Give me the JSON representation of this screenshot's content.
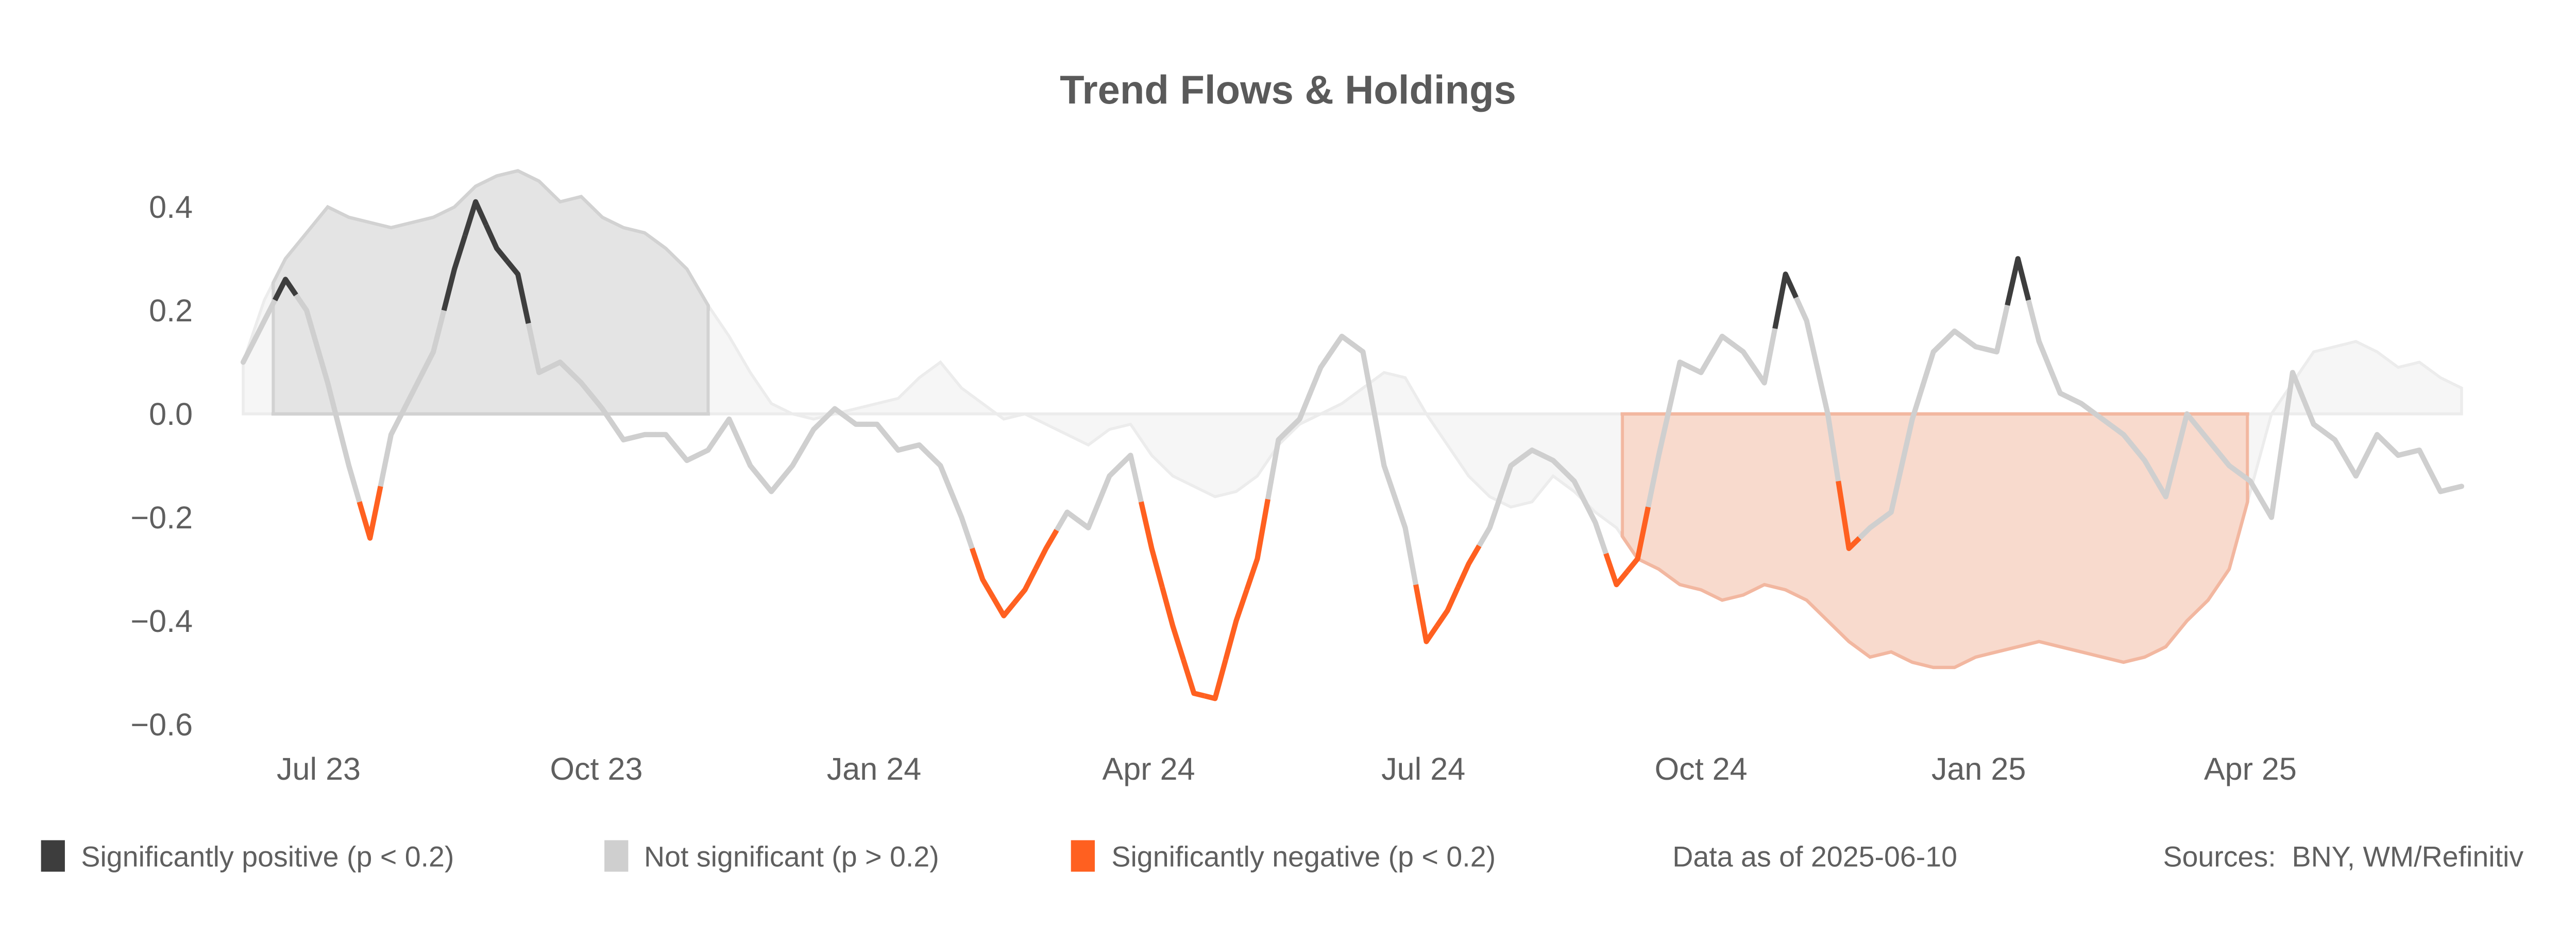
{
  "chart_data": {
    "type": "line",
    "title": "Trend Flows & Holdings",
    "xlabel": "",
    "ylabel": "",
    "ylim": [
      -0.65,
      0.5
    ],
    "grid": false,
    "y_ticks": [
      {
        "value": 0.4,
        "label": "0.4"
      },
      {
        "value": 0.2,
        "label": "0.2"
      },
      {
        "value": 0.0,
        "label": "0.0"
      },
      {
        "value": -0.2,
        "label": "−0.2"
      },
      {
        "value": -0.4,
        "label": "−0.4"
      },
      {
        "value": -0.6,
        "label": "−0.6"
      }
    ],
    "x_ticks": [
      {
        "date": "2023-07-01",
        "label": "Jul 23"
      },
      {
        "date": "2023-10-01",
        "label": "Oct 23"
      },
      {
        "date": "2024-01-01",
        "label": "Jan 24"
      },
      {
        "date": "2024-04-01",
        "label": "Apr 24"
      },
      {
        "date": "2024-07-01",
        "label": "Jul 24"
      },
      {
        "date": "2024-10-01",
        "label": "Oct 24"
      },
      {
        "date": "2025-01-01",
        "label": "Jan 25"
      },
      {
        "date": "2025-04-01",
        "label": "Apr 25"
      }
    ],
    "dates": [
      "2023-06-06",
      "2023-06-13",
      "2023-06-20",
      "2023-06-27",
      "2023-07-04",
      "2023-07-11",
      "2023-07-18",
      "2023-07-25",
      "2023-08-01",
      "2023-08-08",
      "2023-08-15",
      "2023-08-22",
      "2023-08-29",
      "2023-09-05",
      "2023-09-12",
      "2023-09-19",
      "2023-09-26",
      "2023-10-03",
      "2023-10-10",
      "2023-10-17",
      "2023-10-24",
      "2023-10-31",
      "2023-11-07",
      "2023-11-14",
      "2023-11-21",
      "2023-11-28",
      "2023-12-05",
      "2023-12-12",
      "2023-12-19",
      "2023-12-26",
      "2024-01-02",
      "2024-01-09",
      "2024-01-16",
      "2024-01-23",
      "2024-01-30",
      "2024-02-06",
      "2024-02-13",
      "2024-02-20",
      "2024-02-27",
      "2024-03-05",
      "2024-03-12",
      "2024-03-19",
      "2024-03-26",
      "2024-04-02",
      "2024-04-09",
      "2024-04-16",
      "2024-04-23",
      "2024-04-30",
      "2024-05-07",
      "2024-05-14",
      "2024-05-21",
      "2024-05-28",
      "2024-06-04",
      "2024-06-11",
      "2024-06-18",
      "2024-06-25",
      "2024-07-02",
      "2024-07-09",
      "2024-07-16",
      "2024-07-23",
      "2024-07-30",
      "2024-08-06",
      "2024-08-13",
      "2024-08-20",
      "2024-08-27",
      "2024-09-03",
      "2024-09-10",
      "2024-09-17",
      "2024-09-24",
      "2024-10-01",
      "2024-10-08",
      "2024-10-15",
      "2024-10-22",
      "2024-10-29",
      "2024-11-05",
      "2024-11-12",
      "2024-11-19",
      "2024-11-26",
      "2024-12-03",
      "2024-12-10",
      "2024-12-17",
      "2024-12-24",
      "2024-12-31",
      "2025-01-07",
      "2025-01-14",
      "2025-01-21",
      "2025-01-28",
      "2025-02-04",
      "2025-02-11",
      "2025-02-18",
      "2025-02-25",
      "2025-03-04",
      "2025-03-11",
      "2025-03-18",
      "2025-03-25",
      "2025-04-01",
      "2025-04-08",
      "2025-04-15",
      "2025-04-22",
      "2025-04-29",
      "2025-05-06",
      "2025-05-13",
      "2025-05-20",
      "2025-05-27",
      "2025-06-03",
      "2025-06-10"
    ],
    "series": [
      {
        "kind": "line",
        "values": [
          0.1,
          0.18,
          0.26,
          0.2,
          0.06,
          -0.1,
          -0.24,
          -0.04,
          0.04,
          0.12,
          0.28,
          0.41,
          0.32,
          0.27,
          0.08,
          0.1,
          0.06,
          0.01,
          -0.05,
          -0.04,
          -0.04,
          -0.09,
          -0.07,
          -0.01,
          -0.1,
          -0.15,
          -0.1,
          -0.03,
          0.01,
          -0.02,
          -0.02,
          -0.07,
          -0.06,
          -0.1,
          -0.2,
          -0.32,
          -0.39,
          -0.34,
          -0.26,
          -0.19,
          -0.22,
          -0.12,
          -0.08,
          -0.26,
          -0.41,
          -0.54,
          -0.55,
          -0.4,
          -0.28,
          -0.05,
          -0.01,
          0.09,
          0.15,
          0.12,
          -0.1,
          -0.22,
          -0.44,
          -0.38,
          -0.29,
          -0.22,
          -0.1,
          -0.07,
          -0.09,
          -0.13,
          -0.21,
          -0.33,
          -0.28,
          -0.08,
          0.1,
          0.08,
          0.15,
          0.12,
          0.06,
          0.27,
          0.18,
          0.0,
          -0.26,
          -0.22,
          -0.19,
          -0.01,
          0.12,
          0.16,
          0.13,
          0.12,
          0.3,
          0.14,
          0.04,
          0.02,
          -0.01,
          -0.04,
          -0.09,
          -0.16,
          0.0,
          -0.05,
          -0.1,
          -0.13,
          -0.2,
          0.08,
          -0.02,
          -0.05,
          -0.12,
          -0.04,
          -0.08,
          -0.07,
          -0.15,
          -0.14
        ],
        "significance": [
          "ns",
          "ns",
          "pos",
          "ns",
          "ns",
          "ns",
          "neg",
          "ns",
          "ns",
          "ns",
          "pos",
          "pos",
          "pos",
          "pos",
          "ns",
          "ns",
          "ns",
          "ns",
          "ns",
          "ns",
          "ns",
          "ns",
          "ns",
          "ns",
          "ns",
          "ns",
          "ns",
          "ns",
          "ns",
          "ns",
          "ns",
          "ns",
          "ns",
          "ns",
          "ns",
          "neg",
          "neg",
          "neg",
          "neg",
          "ns",
          "ns",
          "ns",
          "ns",
          "neg",
          "neg",
          "neg",
          "neg",
          "neg",
          "neg",
          "ns",
          "ns",
          "ns",
          "ns",
          "ns",
          "ns",
          "ns",
          "neg",
          "neg",
          "neg",
          "ns",
          "ns",
          "ns",
          "ns",
          "ns",
          "ns",
          "neg",
          "neg",
          "ns",
          "ns",
          "ns",
          "ns",
          "ns",
          "ns",
          "pos",
          "ns",
          "ns",
          "neg",
          "ns",
          "ns",
          "ns",
          "ns",
          "ns",
          "ns",
          "ns",
          "pos",
          "ns",
          "ns",
          "ns",
          "ns",
          "ns",
          "ns",
          "ns",
          "ns",
          "ns",
          "ns",
          "ns",
          "ns",
          "ns",
          "ns",
          "ns",
          "ns",
          "ns",
          "ns",
          "ns",
          "ns",
          "ns"
        ]
      },
      {
        "kind": "area",
        "values": [
          0.1,
          0.22,
          0.3,
          0.35,
          0.4,
          0.38,
          0.37,
          0.36,
          0.37,
          0.38,
          0.4,
          0.44,
          0.46,
          0.47,
          0.45,
          0.41,
          0.42,
          0.38,
          0.36,
          0.35,
          0.32,
          0.28,
          0.21,
          0.15,
          0.08,
          0.02,
          0.0,
          -0.01,
          0.0,
          0.01,
          0.02,
          0.03,
          0.07,
          0.1,
          0.05,
          0.02,
          -0.01,
          0.0,
          -0.02,
          -0.04,
          -0.06,
          -0.03,
          -0.02,
          -0.08,
          -0.12,
          -0.14,
          -0.16,
          -0.15,
          -0.12,
          -0.06,
          -0.02,
          0.0,
          0.02,
          0.05,
          0.08,
          0.07,
          0.0,
          -0.06,
          -0.12,
          -0.16,
          -0.18,
          -0.17,
          -0.12,
          -0.15,
          -0.19,
          -0.22,
          -0.28,
          -0.3,
          -0.33,
          -0.34,
          -0.36,
          -0.35,
          -0.33,
          -0.34,
          -0.36,
          -0.4,
          -0.44,
          -0.47,
          -0.46,
          -0.48,
          -0.49,
          -0.49,
          -0.47,
          -0.46,
          -0.45,
          -0.44,
          -0.45,
          -0.46,
          -0.47,
          -0.48,
          -0.47,
          -0.45,
          -0.4,
          -0.36,
          -0.3,
          -0.15,
          0.0,
          0.06,
          0.12,
          0.13,
          0.14,
          0.12,
          0.09,
          0.1,
          0.07,
          0.05
        ]
      }
    ],
    "highlight_ranges": [
      {
        "start": "2023-06-16",
        "end": "2023-11-07",
        "fill": "#e4e4e4",
        "stroke": "#d2d2d2"
      },
      {
        "start": "2024-09-05",
        "end": "2025-03-31",
        "fill": "#f8dacd",
        "stroke": "#f2b7a0"
      }
    ],
    "colors": {
      "pos": "#3d3d3d",
      "ns": "#cfcfcf",
      "neg": "#ff6020",
      "area_fill": "#f6f6f6",
      "area_stroke": "#ececec"
    },
    "legend": {
      "placement": "bottom",
      "items": [
        {
          "label": "Significantly positive (p < 0.2)",
          "color": "#3d3d3d"
        },
        {
          "label": "Not significant (p > 0.2)",
          "color": "#cfcfcf"
        },
        {
          "label": "Significantly negative (p < 0.2)",
          "color": "#ff6020"
        }
      ]
    },
    "footer": {
      "data_as_of": "Data as of 2025-06-10",
      "sources": "Sources:  BNY, WM/Refinitiv"
    }
  }
}
